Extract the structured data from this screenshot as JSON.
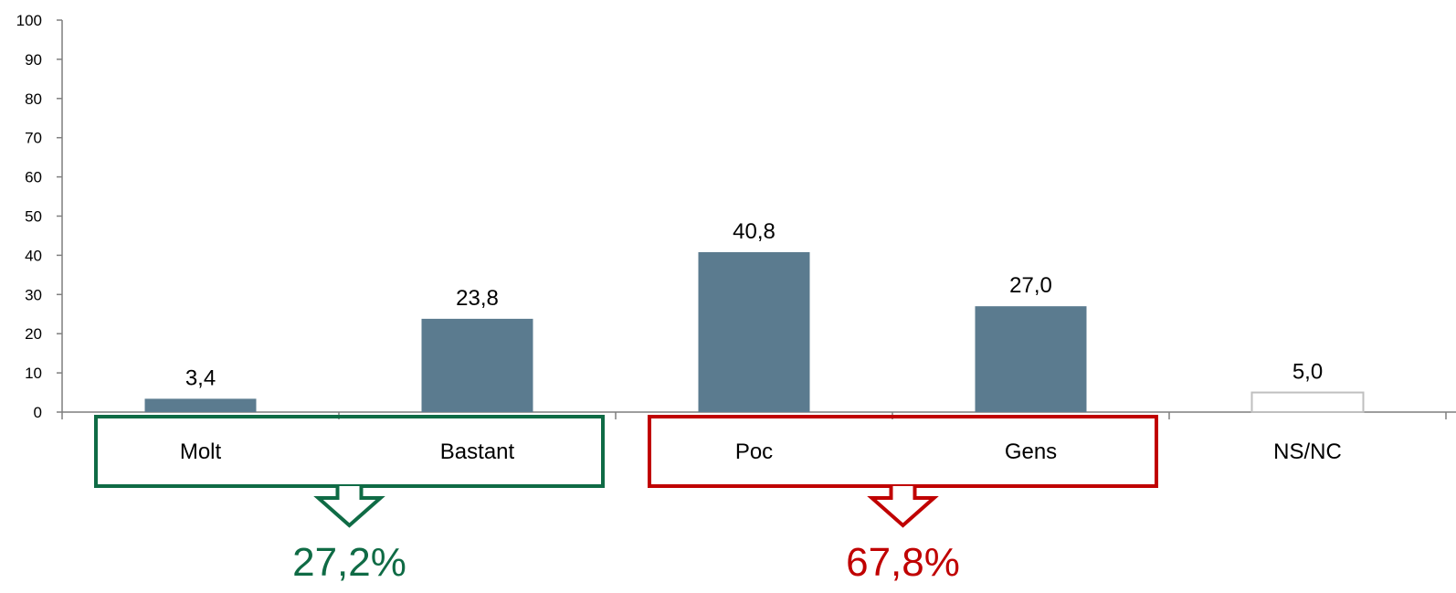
{
  "chart_data": {
    "type": "bar",
    "categories": [
      "Molt",
      "Bastant",
      "Poc",
      "Gens",
      "NS/NC"
    ],
    "values": [
      3.4,
      23.8,
      40.8,
      27.0,
      5.0
    ],
    "value_labels": [
      "3,4",
      "23,8",
      "40,8",
      "27,0",
      "5,0"
    ],
    "ylim": [
      0,
      100
    ],
    "yticks": [
      0,
      10,
      20,
      30,
      40,
      50,
      60,
      70,
      80,
      90,
      100
    ],
    "grid": false,
    "legend": "none",
    "bar_color": "#5b7b8f",
    "nsnc_bar_style": "outline",
    "nsnc_outline_color": "#bfbfbf",
    "groups": [
      {
        "categories": [
          "Molt",
          "Bastant"
        ],
        "total_label": "27,2%",
        "color": "#0f6b45"
      },
      {
        "categories": [
          "Poc",
          "Gens"
        ],
        "total_label": "67,8%",
        "color": "#c00000"
      }
    ]
  }
}
